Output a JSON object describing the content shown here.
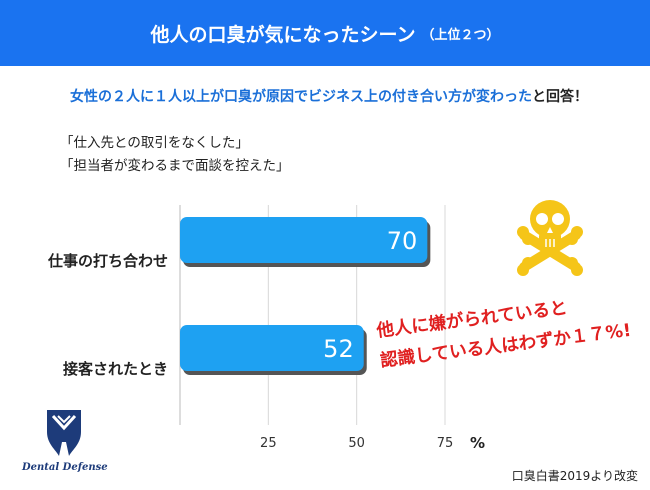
{
  "header": {
    "title": "他人の口臭が気になったシーン",
    "subtitle": "（上位２つ）"
  },
  "headline": {
    "highlight": "女性の２人に１人以上が口臭が原因でビジネス上の付き合い方が変わった",
    "rest": "と回答！"
  },
  "quotes": [
    "「仕入先との取引をなくした」",
    "「担当者が変わるまで面談を控えた」"
  ],
  "callout": {
    "line1": "他人に嫌がられていると",
    "line2": "認識している人はわずか１７%!"
  },
  "logo": {
    "text": "Dental Defense"
  },
  "source": "口臭白書2019より改変",
  "colors": {
    "header": "#1a73f0",
    "bar": "#1ea1f2",
    "callout": "#e02020",
    "skull": "#f5c518"
  },
  "icons": [
    "skull-crossbones-icon",
    "tooth-logo-icon"
  ],
  "chart_data": {
    "type": "bar",
    "orientation": "horizontal",
    "categories": [
      "仕事の打ち合わせ",
      "接客されたとき"
    ],
    "values": [
      70,
      52
    ],
    "x_ticks": [
      25,
      50,
      75
    ],
    "xlim": [
      0,
      75
    ],
    "unit": "%",
    "data_labels": [
      "70",
      "52"
    ],
    "grid": true
  }
}
